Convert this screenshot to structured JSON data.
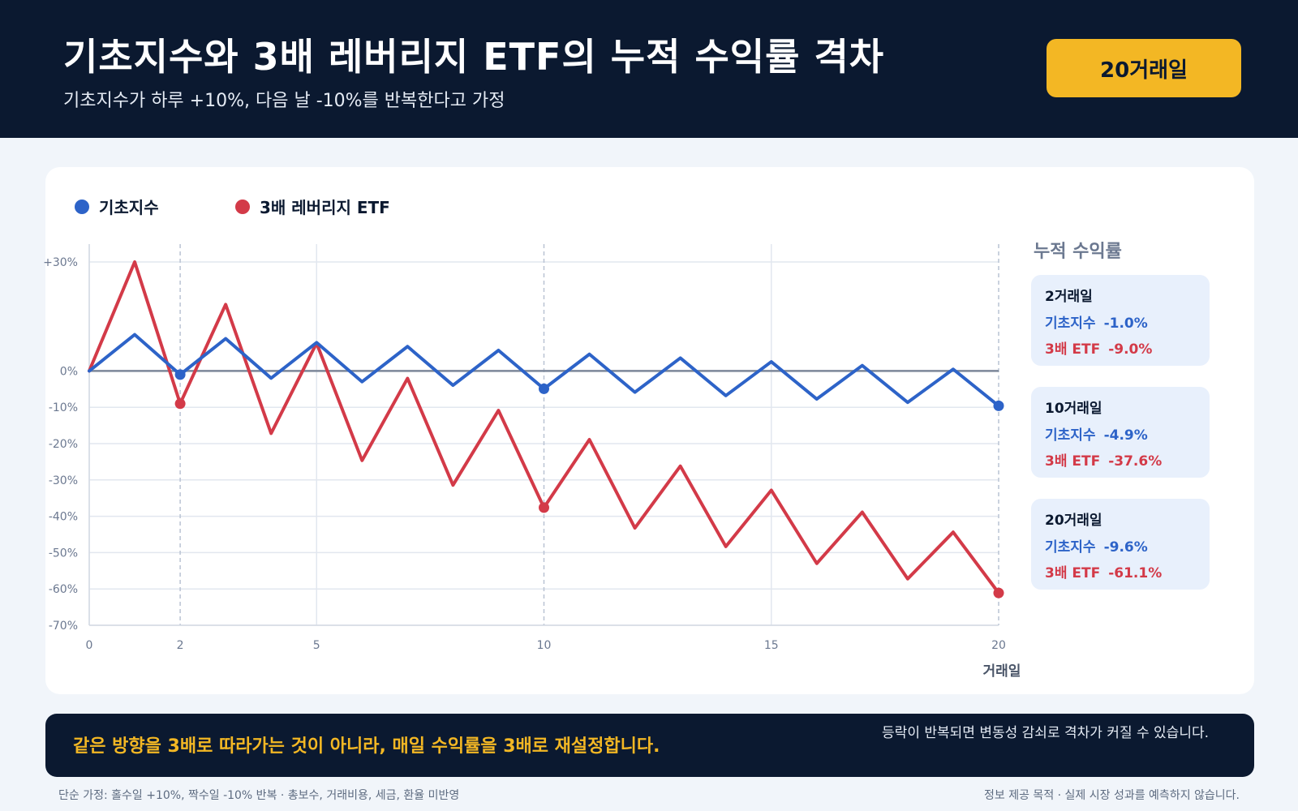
{
  "header": {
    "title": "기초지수와 3배 레버리지 ETF의 누적 수익률 격차",
    "subtitle": "기초지수가 하루 +10%, 다음 날 -10%를 반복한다고 가정",
    "badge": "20거래일"
  },
  "legend": {
    "base": "기초지수",
    "etf": "3배 레버리지 ETF"
  },
  "side_panel": {
    "title": "누적 수익률",
    "boxes": [
      {
        "day": "2거래일",
        "base_label": "기초지수",
        "base_value": "-1.0%",
        "etf_label": "3배 ETF",
        "etf_value": "-9.0%"
      },
      {
        "day": "10거래일",
        "base_label": "기초지수",
        "base_value": "-4.9%",
        "etf_label": "3배 ETF",
        "etf_value": "-37.6%"
      },
      {
        "day": "20거래일",
        "base_label": "기초지수",
        "base_value": "-9.6%",
        "etf_label": "3배 ETF",
        "etf_value": "-61.1%"
      }
    ]
  },
  "footer": {
    "main": "같은 방향을 3배로 따라가는 것이 아니라, 매일 수익률을 3배로 재설정합니다.",
    "side": "등락이 반복되면 변동성 감쇠로 격차가 커질 수 있습니다."
  },
  "notes": {
    "left": "단순 가정: 홀수일 +10%, 짝수일 -10% 반복 · 총보수, 거래비용, 세금, 환율 미반영",
    "right": "정보 제공 목적 · 실제 시장 성과를 예측하지 않습니다."
  },
  "colors": {
    "base": "#2d63c8",
    "etf": "#d33a48",
    "accent": "#f3b724",
    "navy": "#0b1930"
  },
  "chart_data": {
    "type": "line",
    "xlabel": "거래일",
    "ylabel": "",
    "xlim": [
      0,
      20
    ],
    "ylim": [
      -70,
      30
    ],
    "x_ticks": [
      0,
      2,
      5,
      10,
      15,
      20
    ],
    "y_ticks": [
      30,
      0,
      -10,
      -20,
      -30,
      -40,
      -50,
      -60,
      -70
    ],
    "y_tick_labels": [
      "+30%",
      "0%",
      "-10%",
      "-20%",
      "-30%",
      "-40%",
      "-50%",
      "-60%",
      "-70%"
    ],
    "highlight_x": [
      2,
      10,
      20
    ],
    "grid": true,
    "legend_position": "top-left",
    "x": [
      0,
      1,
      2,
      3,
      4,
      5,
      6,
      7,
      8,
      9,
      10,
      11,
      12,
      13,
      14,
      15,
      16,
      17,
      18,
      19,
      20
    ],
    "series": [
      {
        "name": "기초지수",
        "color": "#2d63c8",
        "values": [
          0,
          10,
          -1.0,
          8.9,
          -1.99,
          7.81,
          -2.97,
          6.73,
          -3.94,
          5.67,
          -4.9,
          4.61,
          -5.85,
          3.56,
          -6.79,
          2.53,
          -7.73,
          1.5,
          -8.65,
          0.48,
          -9.6
        ]
      },
      {
        "name": "3배 레버리지 ETF",
        "color": "#d33a48",
        "values": [
          0,
          30,
          -9.0,
          18.3,
          -17.19,
          7.65,
          -24.64,
          -2.04,
          -31.43,
          -10.86,
          -37.6,
          -18.88,
          -43.22,
          -26.18,
          -48.33,
          -32.83,
          -52.98,
          -38.87,
          -57.21,
          -44.37,
          -61.1
        ]
      }
    ]
  }
}
